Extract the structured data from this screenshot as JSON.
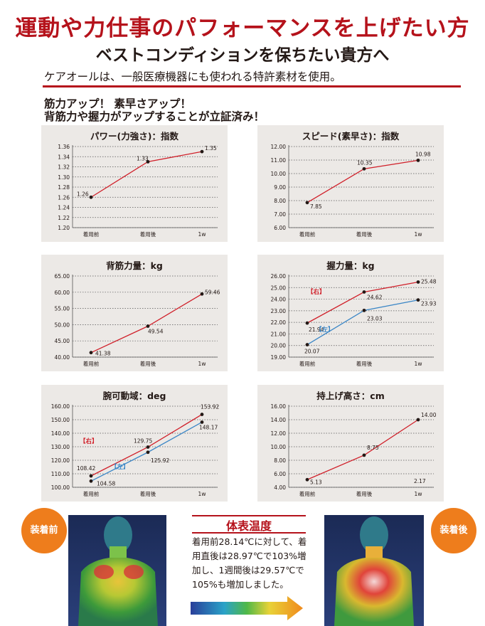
{
  "header": {
    "headline": "運動や力仕事のパフォーマンスを上げたい方",
    "subhead": "ベストコンディションを保ちたい貴方へ",
    "intro": "ケアオールは、一般医療機器にも使われる特許素材を使用。",
    "claim_line1": "筋力アップ！ 素早さアップ！",
    "claim_line2": "背筋力や握力がアップすることが立証済み！"
  },
  "colors": {
    "accent_red": "#b5121b",
    "line_red": "#d0202a",
    "line_blue": "#3a86c6",
    "badge_orange": "#ee7d1c",
    "panel_bg": "#ece9e6"
  },
  "chart_data": [
    {
      "type": "line",
      "title": "パワー(力強さ)：指数",
      "categories": [
        "着用前",
        "着用後",
        "1w"
      ],
      "series": [
        {
          "name": "",
          "values": [
            1.26,
            1.33,
            1.35
          ],
          "labels": [
            "1.26",
            "1.33",
            "1.35"
          ]
        }
      ],
      "ylim": [
        1.2,
        1.36
      ],
      "yticks": [
        "1.20",
        "1.22",
        "1.24",
        "1.26",
        "1.28",
        "1.30",
        "1.32",
        "1.34",
        "1.36"
      ],
      "grid": true
    },
    {
      "type": "line",
      "title": "スピード(素早さ)：指数",
      "categories": [
        "着用前",
        "着用後",
        "1w"
      ],
      "series": [
        {
          "name": "",
          "values": [
            7.85,
            10.35,
            10.98
          ],
          "labels": [
            "7.85",
            "10.35",
            "10.98"
          ]
        }
      ],
      "ylim": [
        6.0,
        12.0
      ],
      "yticks": [
        "6.00",
        "7.00",
        "8.00",
        "9.00",
        "10.00",
        "11.00",
        "12.00"
      ],
      "grid": true
    },
    {
      "type": "line",
      "title": "背筋力量：kg",
      "categories": [
        "着用前",
        "着用後",
        "1w"
      ],
      "series": [
        {
          "name": "",
          "values": [
            41.38,
            49.54,
            59.46
          ],
          "labels": [
            "41.38",
            "49.54",
            "59.46"
          ]
        }
      ],
      "ylim": [
        40.0,
        65.0
      ],
      "yticks": [
        "40.00",
        "45.00",
        "50.00",
        "55.00",
        "60.00",
        "65.00"
      ],
      "grid": true
    },
    {
      "type": "line",
      "title": "握力量：kg",
      "categories": [
        "着用前",
        "着用後",
        "1w"
      ],
      "series": [
        {
          "name": "【右】",
          "values": [
            21.94,
            24.62,
            25.48
          ],
          "labels": [
            "21.94",
            "24.62",
            "25.48"
          ]
        },
        {
          "name": "【左】",
          "values": [
            20.07,
            23.03,
            23.93
          ],
          "labels": [
            "20.07",
            "23.03",
            "23.93"
          ]
        }
      ],
      "ylim": [
        19.0,
        26.0
      ],
      "yticks": [
        "19.00",
        "20.00",
        "21.00",
        "22.00",
        "23.00",
        "24.00",
        "25.00",
        "26.00"
      ],
      "grid": true
    },
    {
      "type": "line",
      "title": "腕可動域：deg",
      "categories": [
        "着用前",
        "着用後",
        "1w"
      ],
      "series": [
        {
          "name": "【右】",
          "values": [
            108.42,
            129.75,
            153.92
          ],
          "labels": [
            "108.42",
            "129.75",
            "153.92"
          ]
        },
        {
          "name": "【左】",
          "values": [
            104.58,
            125.92,
            148.17
          ],
          "labels": [
            "104.58",
            "125.92",
            "148.17"
          ]
        }
      ],
      "ylim": [
        100.0,
        160.0
      ],
      "yticks": [
        "100.00",
        "110.00",
        "120.00",
        "130.00",
        "140.00",
        "150.00",
        "160.00"
      ],
      "grid": true
    },
    {
      "type": "line",
      "title": "持上げ高さ：cm",
      "categories": [
        "着用前",
        "着用後",
        "1w"
      ],
      "series": [
        {
          "name": "",
          "values": [
            5.13,
            8.75,
            14.0
          ],
          "labels": [
            "5.13",
            "8.75",
            "14.00"
          ]
        }
      ],
      "ylim": [
        4.0,
        16.0
      ],
      "yticks": [
        "4.00",
        "6.00",
        "8.00",
        "10.00",
        "12.00",
        "14.00",
        "16.00"
      ],
      "grid": true,
      "annotations": [
        "2.17"
      ]
    }
  ],
  "thermal": {
    "before_label": "装着前",
    "after_label": "装着後",
    "temp_title": "体表温度",
    "temp_lines": [
      "着用前28.14℃に対して、着",
      "用直後は28.97℃で103%増",
      "加し、1週間後は29.57℃で",
      "105%も増加しました。"
    ]
  }
}
